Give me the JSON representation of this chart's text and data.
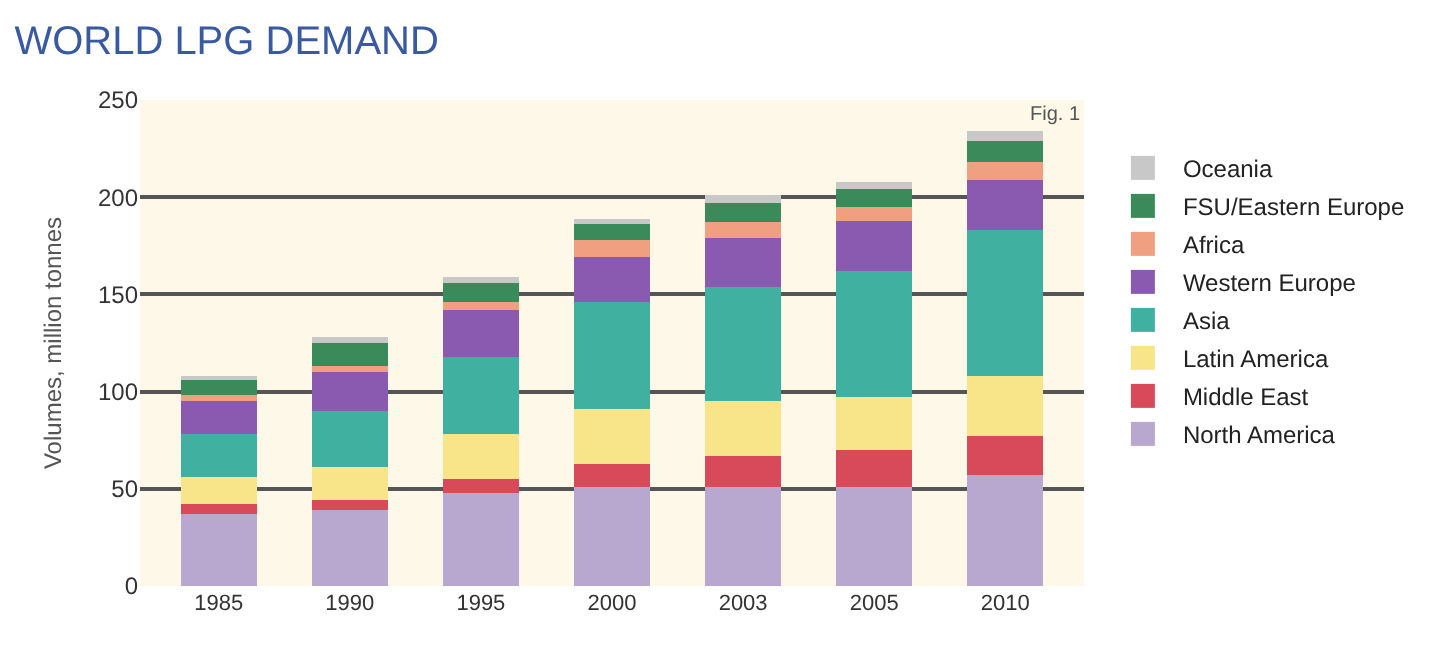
{
  "chart_data": {
    "type": "bar",
    "stacked": true,
    "title": "WORLD LPG DEMAND",
    "ylabel": "Volumes, million tonnes",
    "annotations": [
      "Fig. 1"
    ],
    "categories": [
      "1985",
      "1990",
      "1995",
      "2000",
      "2003",
      "2005",
      "2010"
    ],
    "series": [
      {
        "name": "North America",
        "color": "#b8a8d0",
        "values": [
          37,
          39,
          48,
          51,
          51,
          51,
          57
        ]
      },
      {
        "name": "Middle East",
        "color": "#d84a5a",
        "values": [
          5,
          5,
          7,
          12,
          16,
          19,
          20
        ]
      },
      {
        "name": "Latin America",
        "color": "#f8e58a",
        "values": [
          14,
          17,
          23,
          28,
          28,
          27,
          31
        ]
      },
      {
        "name": "Asia",
        "color": "#40b0a0",
        "values": [
          22,
          29,
          40,
          55,
          59,
          65,
          75
        ]
      },
      {
        "name": "Western Europe",
        "color": "#8a5ab0",
        "values": [
          17,
          20,
          24,
          23,
          25,
          26,
          26
        ]
      },
      {
        "name": "Africa",
        "color": "#f0a080",
        "values": [
          3,
          3,
          4,
          9,
          8,
          7,
          9
        ]
      },
      {
        "name": "FSU/Eastern Europe",
        "color": "#3a8a5a",
        "values": [
          8,
          12,
          10,
          8,
          10,
          9,
          11
        ]
      },
      {
        "name": "Oceania",
        "color": "#c8c8c8",
        "values": [
          2,
          3,
          3,
          3,
          4,
          4,
          5
        ]
      }
    ],
    "ylim": [
      0,
      250
    ],
    "yticks": [
      0,
      50,
      100,
      150,
      200,
      250
    ],
    "grid": "y",
    "legend": "right"
  }
}
